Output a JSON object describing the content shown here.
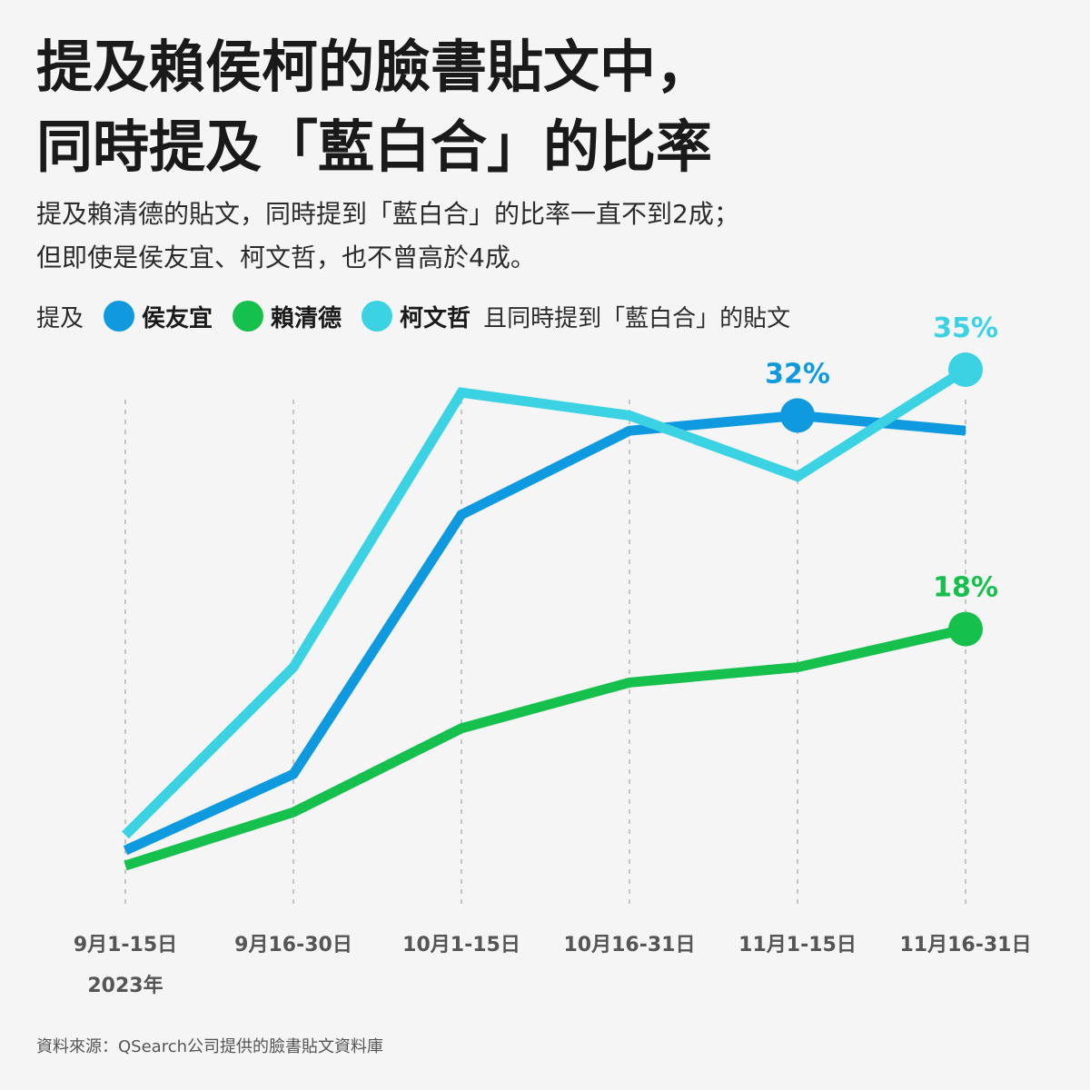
{
  "title_lines": [
    "提及賴侯柯的臉書貼文中，",
    "同時提及「藍白合」的比率"
  ],
  "subtitle_lines": [
    "提及賴清德的貼文，同時提到「藍白合」的比率一直不到2成；",
    "但即使是侯友宜、柯文哲，也不曾高於4成。"
  ],
  "legend": {
    "prefix": "提及",
    "suffix": "且同時提到「藍白合」的貼文"
  },
  "source": "資料來源：QSearch公司提供的臉書貼文資料庫",
  "chart_data": {
    "type": "line",
    "categories": [
      "9月1-15日",
      "9月16-30日",
      "10月1-15日",
      "10月16-31日",
      "11月1-15日",
      "11月16-31日"
    ],
    "year_label": "2023年",
    "ylim": [
      0,
      40
    ],
    "grid": "vertical dashed lines at each category",
    "legend_position": "top-left",
    "series": [
      {
        "name": "侯友宜",
        "color": "#0f9ae0",
        "values": [
          3.5,
          8.5,
          25.5,
          31,
          32,
          31
        ],
        "labels": [
          null,
          null,
          null,
          null,
          "32%",
          null
        ]
      },
      {
        "name": "賴清德",
        "color": "#16c04c",
        "values": [
          2.5,
          6.0,
          11.5,
          14.5,
          15.5,
          18
        ],
        "labels": [
          null,
          null,
          null,
          null,
          null,
          "18%"
        ]
      },
      {
        "name": "柯文哲",
        "color": "#3bd3e3",
        "values": [
          4.5,
          15.5,
          33.5,
          32,
          28,
          35
        ],
        "labels": [
          null,
          null,
          null,
          null,
          null,
          "35%"
        ]
      }
    ]
  }
}
